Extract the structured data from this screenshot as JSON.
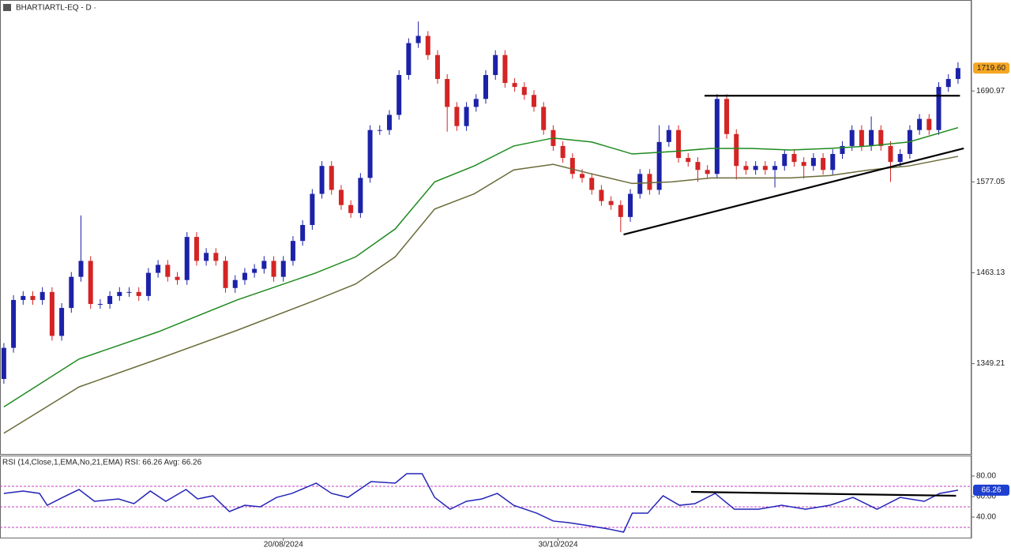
{
  "chart_data": [
    {
      "type": "candlestick",
      "title": "BHARTIARTL-EQ - D ·",
      "xlim": [
        -0.4,
        100.4
      ],
      "ylim": [
        1236,
        1805
      ],
      "yticks": [
        1349.21,
        1463.13,
        1577.05,
        1690.97
      ],
      "up_color": "#1c22a8",
      "down_color": "#d42424",
      "open": [
        1330,
        1369,
        1429,
        1434,
        1429,
        1439,
        1384,
        1419,
        1458,
        1478,
        1424,
        1424,
        1434,
        1439,
        1439,
        1434,
        1463,
        1473,
        1458,
        1454,
        1508,
        1478,
        1488,
        1478,
        1444,
        1454,
        1463,
        1468,
        1478,
        1458,
        1478,
        1503,
        1523,
        1562,
        1597,
        1567,
        1548,
        1538,
        1582,
        1642,
        1642,
        1661,
        1711,
        1751,
        1760,
        1736,
        1706,
        1671,
        1647,
        1671,
        1681,
        1711,
        1736,
        1701,
        1696,
        1686,
        1671,
        1642,
        1622,
        1607,
        1587,
        1582,
        1567,
        1553,
        1548,
        1533,
        1562,
        1587,
        1567,
        1627,
        1642,
        1607,
        1602,
        1592,
        1587,
        1681,
        1637,
        1597,
        1592,
        1597,
        1592,
        1597,
        1612,
        1602,
        1597,
        1607,
        1592,
        1612,
        1622,
        1642,
        1622,
        1642,
        1622,
        1602,
        1612,
        1642,
        1656,
        1642,
        1696,
        1706
      ],
      "high": [
        1375,
        1435,
        1440,
        1440,
        1445,
        1445,
        1425,
        1464,
        1535,
        1484,
        1430,
        1440,
        1445,
        1445,
        1445,
        1469,
        1479,
        1479,
        1464,
        1514,
        1514,
        1494,
        1494,
        1484,
        1460,
        1469,
        1474,
        1484,
        1484,
        1484,
        1509,
        1529,
        1568,
        1603,
        1603,
        1573,
        1554,
        1588,
        1648,
        1648,
        1667,
        1717,
        1757,
        1778,
        1766,
        1742,
        1712,
        1677,
        1677,
        1687,
        1717,
        1742,
        1742,
        1707,
        1702,
        1692,
        1677,
        1648,
        1628,
        1613,
        1593,
        1588,
        1573,
        1559,
        1554,
        1568,
        1593,
        1593,
        1648,
        1648,
        1648,
        1613,
        1608,
        1598,
        1687,
        1687,
        1643,
        1603,
        1603,
        1603,
        1603,
        1618,
        1618,
        1608,
        1613,
        1613,
        1618,
        1628,
        1648,
        1648,
        1659,
        1648,
        1628,
        1618,
        1648,
        1662,
        1662,
        1702,
        1712,
        1727
      ],
      "low": [
        1324,
        1363,
        1423,
        1423,
        1423,
        1378,
        1378,
        1413,
        1452,
        1418,
        1418,
        1418,
        1428,
        1433,
        1428,
        1428,
        1457,
        1452,
        1448,
        1448,
        1472,
        1472,
        1472,
        1438,
        1438,
        1448,
        1457,
        1462,
        1452,
        1452,
        1472,
        1497,
        1517,
        1556,
        1561,
        1542,
        1532,
        1532,
        1576,
        1636,
        1636,
        1655,
        1705,
        1745,
        1730,
        1700,
        1640,
        1641,
        1641,
        1665,
        1675,
        1705,
        1695,
        1690,
        1680,
        1665,
        1636,
        1616,
        1601,
        1581,
        1576,
        1561,
        1547,
        1542,
        1514,
        1527,
        1556,
        1561,
        1561,
        1621,
        1601,
        1596,
        1577,
        1581,
        1581,
        1631,
        1580,
        1586,
        1586,
        1586,
        1570,
        1591,
        1596,
        1581,
        1591,
        1586,
        1586,
        1606,
        1616,
        1616,
        1616,
        1616,
        1577,
        1596,
        1606,
        1636,
        1636,
        1636,
        1690,
        1700
      ],
      "close": [
        1369,
        1429,
        1434,
        1429,
        1439,
        1384,
        1419,
        1458,
        1478,
        1424,
        1424,
        1434,
        1439,
        1439,
        1434,
        1463,
        1473,
        1458,
        1454,
        1508,
        1478,
        1488,
        1478,
        1444,
        1454,
        1463,
        1468,
        1478,
        1458,
        1478,
        1503,
        1523,
        1562,
        1597,
        1567,
        1548,
        1538,
        1582,
        1642,
        1642,
        1661,
        1711,
        1751,
        1760,
        1736,
        1706,
        1671,
        1647,
        1671,
        1681,
        1711,
        1736,
        1701,
        1696,
        1686,
        1671,
        1642,
        1622,
        1607,
        1587,
        1582,
        1567,
        1553,
        1548,
        1533,
        1562,
        1587,
        1567,
        1627,
        1642,
        1607,
        1602,
        1592,
        1587,
        1681,
        1637,
        1597,
        1592,
        1597,
        1592,
        1597,
        1612,
        1602,
        1597,
        1607,
        1592,
        1612,
        1622,
        1642,
        1622,
        1642,
        1622,
        1602,
        1612,
        1642,
        1656,
        1642,
        1696,
        1706,
        1719.6
      ],
      "series": [
        {
          "color": "#1e8a1e",
          "x": [
            0,
            7.8,
            16,
            24.2,
            32.4,
            36.5,
            40.6,
            44.7,
            48.8,
            52.9,
            57,
            61,
            65.2,
            69.3,
            73.4,
            77.5,
            81.6,
            85.7,
            89.8,
            93.9,
            99
          ],
          "values": [
            1295,
            1355,
            1389,
            1429,
            1463,
            1483,
            1518,
            1577,
            1597,
            1622,
            1632,
            1627,
            1612,
            1615,
            1619,
            1619,
            1617,
            1619,
            1622,
            1627,
            1645
          ]
        },
        {
          "color": "#6b6b3a",
          "x": [
            0,
            7.8,
            16,
            24.2,
            32.4,
            36.5,
            40.6,
            44.7,
            48.8,
            52.9,
            57,
            61,
            65.2,
            69.3,
            73.4,
            77.5,
            81.6,
            85.7,
            89.8,
            93.9,
            99
          ],
          "values": [
            1262,
            1320,
            1355,
            1391,
            1429,
            1449,
            1483,
            1543,
            1562,
            1592,
            1599,
            1587,
            1575,
            1577,
            1582,
            1582,
            1582,
            1585,
            1592,
            1597,
            1609
          ]
        }
      ],
      "trendlines": [
        {
          "color": "#000000",
          "x": [
            72.7,
            99.2
          ],
          "values": [
            1685,
            1685
          ]
        },
        {
          "color": "#000000",
          "x": [
            64.3,
            99.6
          ],
          "values": [
            1511,
            1619
          ]
        }
      ],
      "marker": {
        "value": 1719.6,
        "label": "1719.60",
        "color": "#f5a623"
      }
    },
    {
      "type": "line",
      "title": "RSI (14,Close,1,EMA,No,21,EMA) RSI: 66.26 Avg: 66.26",
      "xlim": [
        -0.4,
        100.4
      ],
      "ylim": [
        20,
        100
      ],
      "xticks": [
        {
          "value": 29,
          "label": "20/08/2024"
        },
        {
          "value": 57.5,
          "label": "30/10/2024"
        }
      ],
      "yticks": [
        {
          "value": 40,
          "label": "40.00"
        },
        {
          "value": 60,
          "label": "60.00"
        },
        {
          "value": 80,
          "label": "80.00"
        }
      ],
      "levels": [
        30,
        50,
        70
      ],
      "level_color": "#c040c0",
      "series": [
        {
          "color": "#2424b8",
          "x": [
            0,
            2,
            3.7,
            4.5,
            6.1,
            7.8,
            9.4,
            11.9,
            13.5,
            15.2,
            16.8,
            18.9,
            20.1,
            21.7,
            23.4,
            25,
            26.6,
            28.3,
            29.9,
            32.4,
            34,
            35.7,
            38.1,
            40.6,
            41.8,
            43.4,
            44.7,
            46.3,
            48,
            49.6,
            51.2,
            52.9,
            55.3,
            57,
            58.6,
            60.2,
            62.7,
            64.3,
            65.2,
            66.8,
            68.4,
            70.1,
            71.7,
            73.8,
            75.8,
            78.3,
            80.7,
            83.2,
            85.7,
            88.1,
            90.6,
            93,
            95.5,
            97.1,
            99
          ],
          "values": [
            63.1,
            65.4,
            63.1,
            51.5,
            59.2,
            66.9,
            55.4,
            57.7,
            53.1,
            65.4,
            55.4,
            66.9,
            57.7,
            60.8,
            45.4,
            51.5,
            50,
            59.2,
            63.1,
            73.1,
            63.1,
            59.2,
            74.6,
            73.1,
            82.3,
            82.3,
            59.2,
            47.7,
            55.4,
            57.7,
            63.1,
            51.5,
            43.8,
            36.2,
            34.6,
            32.3,
            28.5,
            25.4,
            43.8,
            43.8,
            60.8,
            51.5,
            53.1,
            63.1,
            47.7,
            47.7,
            51.5,
            47.7,
            51.5,
            59.2,
            47.7,
            59.2,
            55.4,
            63.1,
            66.26
          ]
        }
      ],
      "trendlines": [
        {
          "color": "#000000",
          "x": [
            71.3,
            98.8
          ],
          "values": [
            64.6,
            60.8
          ]
        }
      ],
      "marker": {
        "value": 66.26,
        "label": "66.26",
        "color": "#1f3fd0"
      }
    }
  ]
}
